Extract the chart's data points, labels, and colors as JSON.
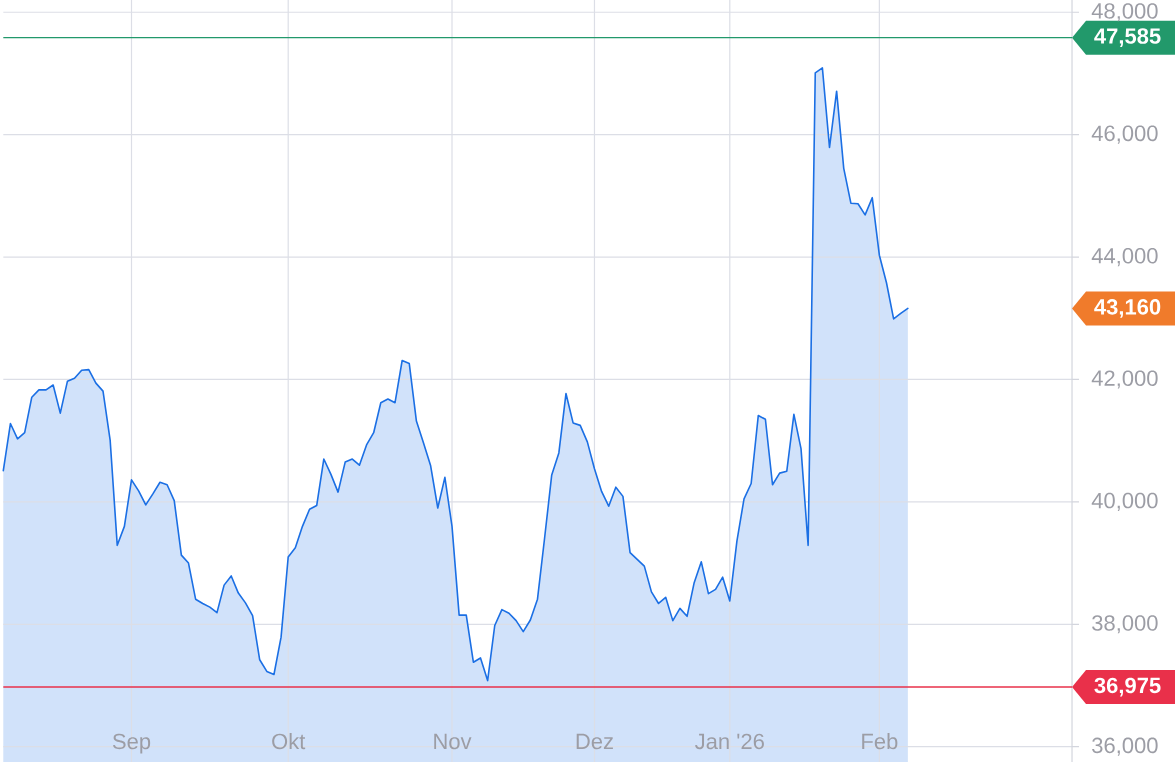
{
  "chart_data": {
    "type": "area",
    "categories": [
      null,
      null,
      null,
      null,
      null,
      null,
      null,
      null,
      null,
      null,
      null,
      null,
      null,
      null,
      null,
      null,
      null,
      null,
      "Sep",
      null,
      null,
      null,
      null,
      null,
      null,
      null,
      null,
      null,
      null,
      null,
      null,
      null,
      null,
      null,
      null,
      null,
      null,
      null,
      null,
      null,
      "Okt",
      null,
      null,
      null,
      null,
      null,
      null,
      null,
      null,
      null,
      null,
      null,
      null,
      null,
      null,
      null,
      null,
      null,
      null,
      null,
      null,
      null,
      null,
      "Nov",
      null,
      null,
      null,
      null,
      null,
      null,
      null,
      null,
      null,
      null,
      null,
      null,
      null,
      null,
      null,
      null,
      null,
      null,
      null,
      "Dez",
      null,
      null,
      null,
      null,
      null,
      null,
      null,
      null,
      null,
      null,
      null,
      null,
      null,
      null,
      null,
      null,
      null,
      null,
      "Jan '26",
      null,
      null,
      null,
      null,
      null,
      null,
      null,
      null,
      null,
      null,
      null,
      null,
      null,
      null,
      null,
      null,
      null,
      null,
      null,
      null,
      "Feb",
      null,
      null,
      null,
      null
    ],
    "series": [
      {
        "color": "#1b6fe4",
        "values": [
          40510,
          41280,
          41030,
          41130,
          41710,
          41830,
          41830,
          41910,
          41450,
          41970,
          42020,
          42150,
          42160,
          41940,
          41810,
          41010,
          39290,
          39600,
          40360,
          40180,
          39950,
          40130,
          40320,
          40280,
          40020,
          39130,
          39000,
          38410,
          38340,
          38280,
          38190,
          38640,
          38790,
          38510,
          38350,
          38140,
          37420,
          37230,
          37180,
          37790,
          39100,
          39250,
          39600,
          39880,
          39940,
          40700,
          40450,
          40160,
          40650,
          40700,
          40600,
          40930,
          41130,
          41620,
          41680,
          41620,
          42310,
          42260,
          41320,
          40960,
          40590,
          39900,
          40400,
          39600,
          38150,
          38150,
          37380,
          37450,
          37080,
          37980,
          38240,
          38180,
          38060,
          37880,
          38070,
          38410,
          39410,
          40440,
          40800,
          41770,
          41290,
          41250,
          40980,
          40540,
          40170,
          39930,
          40240,
          40090,
          39170,
          39060,
          38950,
          38530,
          38340,
          38440,
          38060,
          38260,
          38130,
          38680,
          39020,
          38500,
          38570,
          38770,
          38380,
          39360,
          40050,
          40300,
          41410,
          41350,
          40280,
          40470,
          40500,
          41430,
          40870,
          39290,
          47010,
          47090,
          45790,
          46710,
          45450,
          44880,
          44870,
          44690,
          44970,
          44030,
          43580,
          42990,
          43080,
          43160
        ]
      }
    ],
    "ylim": [
      35750,
      48200
    ],
    "yticks": [
      {
        "value": 36000,
        "label": "36,000"
      },
      {
        "value": 38000,
        "label": "38,000"
      },
      {
        "value": 40000,
        "label": "40,000"
      },
      {
        "value": 42000,
        "label": "42,000"
      },
      {
        "value": 44000,
        "label": "44,000"
      },
      {
        "value": 46000,
        "label": "46,000"
      },
      {
        "value": 48000,
        "label": "48,000"
      }
    ],
    "grid": true,
    "ref_lines": [
      {
        "axis": "y",
        "value": 47585,
        "label": "47,585",
        "color": "#22996b"
      },
      {
        "axis": "y",
        "value": 36975,
        "label": "36,975",
        "color": "#e9304a"
      }
    ],
    "annotations": [
      "43,160"
    ]
  }
}
